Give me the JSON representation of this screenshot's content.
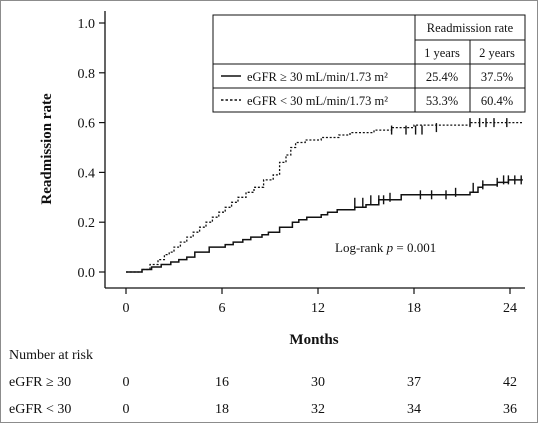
{
  "chart_data": {
    "type": "line",
    "xlabel": "Months",
    "ylabel": "Readmission rate",
    "xlim": [
      0,
      25
    ],
    "ylim": [
      0,
      1.0
    ],
    "xticks": [
      "0",
      "6",
      "12",
      "18",
      "24"
    ],
    "yticks": [
      "0.0",
      "0.2",
      "0.4",
      "0.6",
      "0.8",
      "1.0"
    ],
    "annotation": {
      "prefix": "Log-rank ",
      "p": "p",
      "suffix": " = 0.001"
    },
    "legend_table": {
      "header": "Readmission rate",
      "cols": [
        "1 years",
        "2 years"
      ],
      "rows": [
        {
          "label": "eGFR ≥ 30 mL/min/1.73 m²",
          "style": "solid",
          "vals": [
            "25.4%",
            "37.5%"
          ]
        },
        {
          "label": "eGFR < 30 mL/min/1.73 m²",
          "style": "dotted",
          "vals": [
            "53.3%",
            "60.4%"
          ]
        }
      ]
    },
    "series": [
      {
        "style": "solid",
        "steps": [
          [
            0,
            0
          ],
          [
            1,
            0.01
          ],
          [
            1.6,
            0.02
          ],
          [
            2.2,
            0.03
          ],
          [
            2.8,
            0.04
          ],
          [
            3.3,
            0.05
          ],
          [
            3.8,
            0.06
          ],
          [
            4.3,
            0.08
          ],
          [
            5.2,
            0.1
          ],
          [
            6.2,
            0.11
          ],
          [
            6.7,
            0.12
          ],
          [
            7.3,
            0.13
          ],
          [
            7.8,
            0.14
          ],
          [
            8.5,
            0.15
          ],
          [
            8.9,
            0.16
          ],
          [
            9.6,
            0.18
          ],
          [
            10.4,
            0.2
          ],
          [
            10.8,
            0.21
          ],
          [
            11.3,
            0.22
          ],
          [
            12.2,
            0.23
          ],
          [
            12.6,
            0.24
          ],
          [
            13.2,
            0.25
          ],
          [
            14.3,
            0.26
          ],
          [
            15,
            0.27
          ],
          [
            15.8,
            0.29
          ],
          [
            17.2,
            0.31
          ],
          [
            21.5,
            0.32
          ],
          [
            22,
            0.34
          ],
          [
            22.3,
            0.35
          ],
          [
            23.2,
            0.36
          ],
          [
            23.9,
            0.37
          ],
          [
            24.8,
            0.37
          ]
        ],
        "censor": [
          [
            14.3,
            0.28
          ],
          [
            14.8,
            0.28
          ],
          [
            15.3,
            0.29
          ],
          [
            15.8,
            0.29
          ],
          [
            16.1,
            0.29
          ],
          [
            16.5,
            0.3
          ],
          [
            18.4,
            0.31
          ],
          [
            19.1,
            0.31
          ],
          [
            20,
            0.31
          ],
          [
            20.6,
            0.32
          ],
          [
            21.7,
            0.34
          ],
          [
            22.3,
            0.35
          ],
          [
            23.2,
            0.36
          ],
          [
            23.6,
            0.37
          ],
          [
            23.9,
            0.37
          ],
          [
            24.3,
            0.37
          ],
          [
            24.7,
            0.37
          ]
        ]
      },
      {
        "style": "dotted",
        "steps": [
          [
            0,
            0
          ],
          [
            1,
            0.01
          ],
          [
            1.5,
            0.03
          ],
          [
            2,
            0.05
          ],
          [
            2.4,
            0.07
          ],
          [
            2.7,
            0.08
          ],
          [
            3,
            0.1
          ],
          [
            3.4,
            0.12
          ],
          [
            3.8,
            0.14
          ],
          [
            4.2,
            0.16
          ],
          [
            4.6,
            0.18
          ],
          [
            5,
            0.2
          ],
          [
            5.4,
            0.22
          ],
          [
            5.8,
            0.24
          ],
          [
            6.2,
            0.26
          ],
          [
            6.6,
            0.28
          ],
          [
            7,
            0.3
          ],
          [
            7.5,
            0.32
          ],
          [
            8,
            0.34
          ],
          [
            8.6,
            0.37
          ],
          [
            9.2,
            0.39
          ],
          [
            9.6,
            0.44
          ],
          [
            10,
            0.47
          ],
          [
            10.3,
            0.5
          ],
          [
            10.6,
            0.52
          ],
          [
            11.2,
            0.53
          ],
          [
            12.2,
            0.54
          ],
          [
            13.3,
            0.55
          ],
          [
            14,
            0.56
          ],
          [
            15.5,
            0.57
          ],
          [
            16.6,
            0.58
          ],
          [
            18,
            0.59
          ],
          [
            21.5,
            0.6
          ],
          [
            24.8,
            0.6
          ]
        ],
        "censor": [
          [
            16.6,
            0.57
          ],
          [
            17.5,
            0.57
          ],
          [
            18.1,
            0.57
          ],
          [
            18.5,
            0.57
          ],
          [
            19.4,
            0.58
          ],
          [
            21.5,
            0.6
          ],
          [
            22.1,
            0.6
          ],
          [
            22.5,
            0.6
          ],
          [
            23,
            0.6
          ],
          [
            23.8,
            0.6
          ]
        ]
      }
    ]
  },
  "risk_table": {
    "title": "Number at risk",
    "rows": [
      {
        "label": "eGFR ≥ 30",
        "values": [
          "0",
          "16",
          "30",
          "37",
          "42"
        ]
      },
      {
        "label": "eGFR < 30",
        "values": [
          "0",
          "18",
          "32",
          "34",
          "36"
        ]
      }
    ]
  }
}
